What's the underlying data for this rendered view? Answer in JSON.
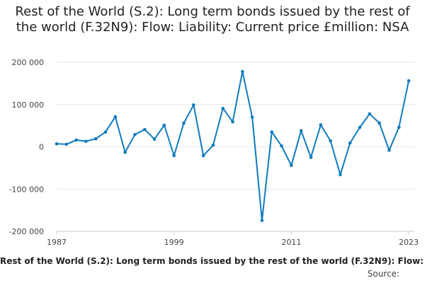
{
  "chart_data": {
    "type": "line",
    "title": "Rest of the World (S.2): Long term bonds issued by the rest of the world (F.32N9): Flow: Liability: Current price £million: NSA",
    "x": [
      1987,
      1988,
      1989,
      1990,
      1991,
      1992,
      1993,
      1994,
      1995,
      1996,
      1997,
      1998,
      1999,
      2000,
      2001,
      2002,
      2003,
      2004,
      2005,
      2006,
      2007,
      2008,
      2009,
      2010,
      2011,
      2012,
      2013,
      2014,
      2015,
      2016,
      2017,
      2018,
      2019,
      2020,
      2021,
      2022,
      2023
    ],
    "series": [
      {
        "name": "Rest of the World (S.2): Long term bonds issued by the rest of the world (F.32N9): Flow: Liability: Current price £million: NSA",
        "values": [
          7000,
          6000,
          16000,
          13000,
          19000,
          35000,
          71000,
          -13000,
          29000,
          41000,
          18000,
          51000,
          -21000,
          56000,
          99000,
          -21000,
          4000,
          91000,
          59000,
          178000,
          70000,
          -174000,
          35000,
          2000,
          -44000,
          38000,
          -25000,
          52000,
          14000,
          -66000,
          9000,
          46000,
          78000,
          56000,
          -8000,
          46000,
          156000
        ]
      }
    ],
    "x_ticks": [
      "1987",
      "1999",
      "2011",
      "2023"
    ],
    "y_ticks": [
      "200 000",
      "100 000",
      "0",
      "-100 000",
      "-200 000"
    ],
    "xlim": [
      1987,
      2023
    ],
    "ylim": [
      -200000,
      200000
    ],
    "grid": true,
    "line_color": "#0f7bbd",
    "gridline_color": "#e6e6e6",
    "source_label": "Source:"
  }
}
